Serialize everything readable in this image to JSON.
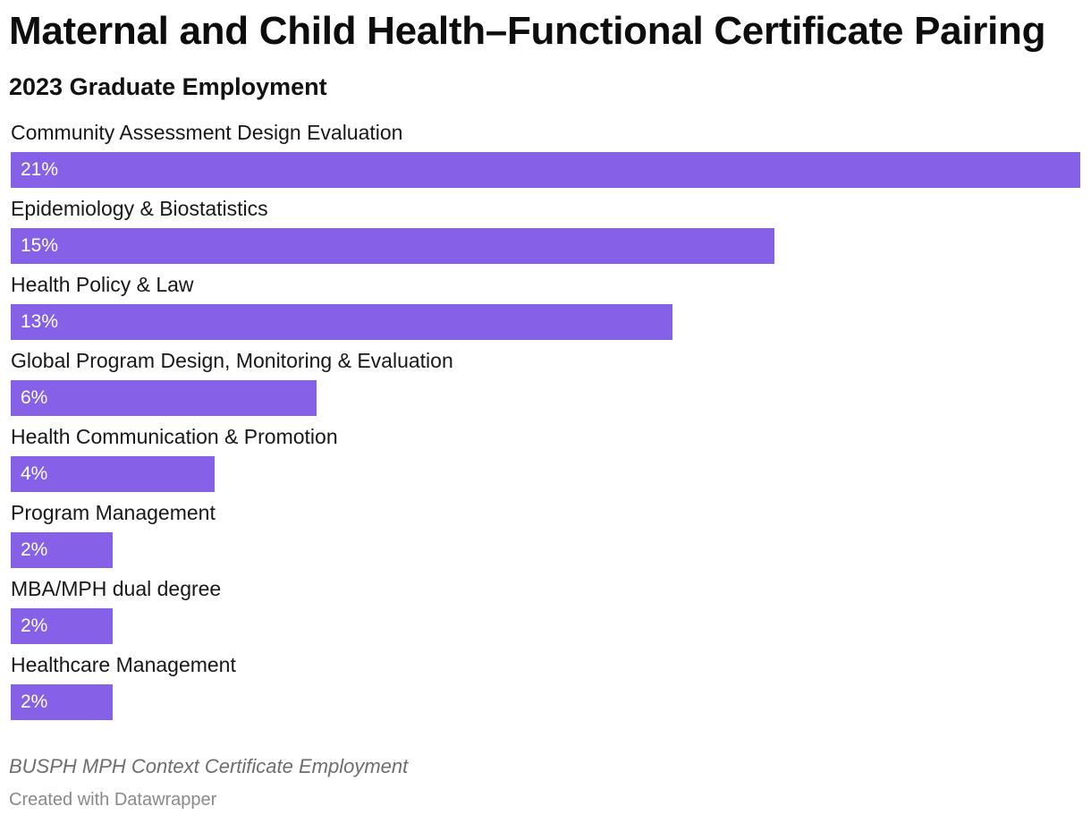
{
  "chart_data": {
    "type": "bar",
    "orientation": "horizontal",
    "title": "Maternal and Child Health–Functional Certificate Pairing",
    "subtitle": "2023 Graduate Employment",
    "categories": [
      "Community Assessment Design Evaluation",
      "Epidemiology & Biostatistics",
      "Health Policy & Law",
      "Global Program Design, Monitoring & Evaluation",
      "Health Communication & Promotion",
      "Program Management",
      "MBA/MPH dual degree",
      "Healthcare Management"
    ],
    "values": [
      21,
      15,
      13,
      6,
      4,
      2,
      2,
      2
    ],
    "value_labels": [
      "21%",
      "15%",
      "13%",
      "6%",
      "4%",
      "2%",
      "2%",
      "2%"
    ],
    "unit": "%",
    "xlim": [
      0,
      21
    ],
    "grid": false,
    "legend": "none",
    "bar_color": "#8660e6",
    "notes": "BUSPH MPH Context Certificate Employment",
    "credit": "Created with Datawrapper"
  }
}
